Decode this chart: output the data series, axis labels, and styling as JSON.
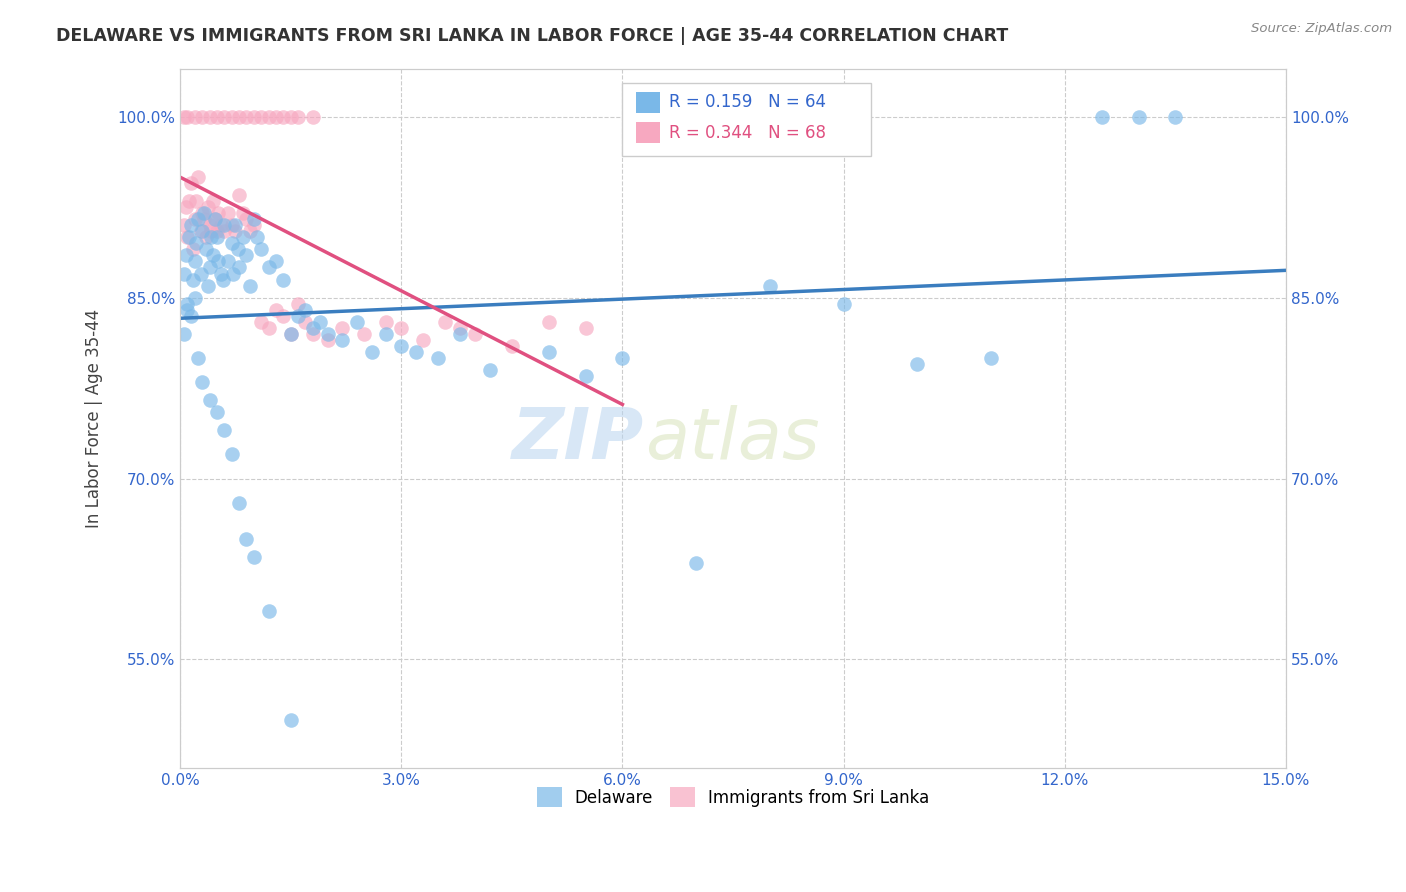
{
  "title": "DELAWARE VS IMMIGRANTS FROM SRI LANKA IN LABOR FORCE | AGE 35-44 CORRELATION CHART",
  "source": "Source: ZipAtlas.com",
  "xlabel_vals": [
    0.0,
    3.0,
    6.0,
    9.0,
    12.0,
    15.0
  ],
  "ylabel_vals": [
    55.0,
    70.0,
    85.0,
    100.0
  ],
  "xlim": [
    0.0,
    15.0
  ],
  "ylim": [
    46.0,
    104.0
  ],
  "legend_label1": "Delaware",
  "legend_label2": "Immigrants from Sri Lanka",
  "R1": "0.159",
  "N1": "64",
  "R2": "0.344",
  "N2": "68",
  "color_delaware": "#7ab8e8",
  "color_srilanka": "#f7a8c0",
  "color_line_delaware": "#3a7dbf",
  "color_line_srilanka": "#e05080",
  "watermark_zip": "ZIP",
  "watermark_atlas": "atlas",
  "delaware_x": [
    0.05,
    0.08,
    0.1,
    0.12,
    0.15,
    0.18,
    0.2,
    0.22,
    0.25,
    0.28,
    0.3,
    0.32,
    0.35,
    0.38,
    0.4,
    0.42,
    0.45,
    0.48,
    0.5,
    0.52,
    0.55,
    0.58,
    0.6,
    0.65,
    0.7,
    0.72,
    0.75,
    0.78,
    0.8,
    0.85,
    0.9,
    0.95,
    1.0,
    1.05,
    1.1,
    1.2,
    1.3,
    1.4,
    1.5,
    1.6,
    1.7,
    1.8,
    1.9,
    2.0,
    2.2,
    2.4,
    2.6,
    2.8,
    3.0,
    3.2,
    3.5,
    3.8,
    4.2,
    5.0,
    5.5,
    6.0,
    7.0,
    8.0,
    9.0,
    10.0,
    11.0,
    12.5,
    13.0,
    13.5
  ],
  "delaware_y": [
    87.0,
    88.5,
    84.0,
    90.0,
    91.0,
    86.5,
    88.0,
    89.5,
    91.5,
    87.0,
    90.5,
    92.0,
    89.0,
    86.0,
    87.5,
    90.0,
    88.5,
    91.5,
    90.0,
    88.0,
    87.0,
    86.5,
    91.0,
    88.0,
    89.5,
    87.0,
    91.0,
    89.0,
    87.5,
    90.0,
    88.5,
    86.0,
    91.5,
    90.0,
    89.0,
    87.5,
    88.0,
    86.5,
    82.0,
    83.5,
    84.0,
    82.5,
    83.0,
    82.0,
    81.5,
    83.0,
    80.5,
    82.0,
    81.0,
    80.5,
    80.0,
    82.0,
    79.0,
    80.5,
    78.5,
    80.0,
    63.0,
    86.0,
    84.5,
    79.5,
    80.0,
    100.0,
    100.0,
    100.0
  ],
  "delaware_extra_x": [
    0.05,
    0.1,
    0.15,
    0.2,
    0.25,
    0.3,
    0.4,
    0.5,
    0.6,
    0.7,
    0.8,
    0.9,
    1.0,
    1.2,
    1.5
  ],
  "delaware_extra_y": [
    82.0,
    84.5,
    83.5,
    85.0,
    80.0,
    78.0,
    76.5,
    75.5,
    74.0,
    72.0,
    68.0,
    65.0,
    63.5,
    59.0,
    50.0
  ],
  "srilanka_x": [
    0.05,
    0.08,
    0.1,
    0.12,
    0.15,
    0.18,
    0.2,
    0.22,
    0.25,
    0.28,
    0.3,
    0.32,
    0.35,
    0.38,
    0.4,
    0.42,
    0.45,
    0.48,
    0.5,
    0.52,
    0.55,
    0.6,
    0.65,
    0.7,
    0.75,
    0.8,
    0.85,
    0.9,
    0.95,
    1.0,
    1.1,
    1.2,
    1.3,
    1.4,
    1.5,
    1.6,
    1.7,
    1.8,
    2.0,
    2.2,
    2.5,
    2.8,
    3.0,
    3.3,
    3.6,
    3.8,
    4.0,
    4.5,
    5.0,
    5.5,
    0.05,
    0.1,
    0.2,
    0.3,
    0.4,
    0.5,
    0.6,
    0.7,
    0.8,
    0.9,
    1.0,
    1.1,
    1.2,
    1.3,
    1.4,
    1.5,
    1.6,
    1.8
  ],
  "srilanka_y": [
    91.0,
    92.5,
    90.0,
    93.0,
    94.5,
    89.0,
    91.5,
    93.0,
    95.0,
    90.5,
    92.0,
    91.5,
    90.0,
    92.5,
    91.0,
    90.5,
    93.0,
    91.5,
    90.5,
    92.0,
    91.0,
    90.5,
    92.0,
    91.0,
    90.5,
    93.5,
    92.0,
    91.5,
    90.5,
    91.0,
    83.0,
    82.5,
    84.0,
    83.5,
    82.0,
    84.5,
    83.0,
    82.0,
    81.5,
    82.5,
    82.0,
    83.0,
    82.5,
    81.5,
    83.0,
    82.5,
    82.0,
    81.0,
    83.0,
    82.5,
    100.0,
    100.0,
    100.0,
    100.0,
    100.0,
    100.0,
    100.0,
    100.0,
    100.0,
    100.0,
    100.0,
    100.0,
    100.0,
    100.0,
    100.0,
    100.0,
    100.0,
    100.0
  ]
}
